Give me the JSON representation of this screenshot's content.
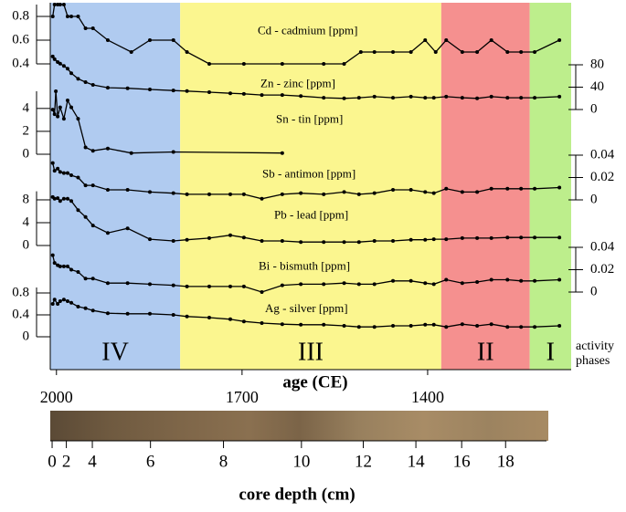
{
  "chart_data": [
    {
      "type": "line",
      "title": "Cd - cadmium [ppm]",
      "color": "#000000",
      "axis_side": "left",
      "x": [
        2006,
        2003,
        1998,
        1994,
        1988,
        1982,
        1976,
        1965,
        1953,
        1941,
        1917,
        1879,
        1849,
        1811,
        1789,
        1753,
        1697,
        1635,
        1568,
        1535,
        1508,
        1486,
        1456,
        1427,
        1404,
        1387,
        1370,
        1344,
        1320,
        1297,
        1271,
        1249,
        1227,
        1187
      ],
      "values": [
        0.8,
        0.9,
        0.9,
        0.9,
        0.9,
        0.8,
        0.8,
        0.8,
        0.7,
        0.7,
        0.6,
        0.5,
        0.6,
        0.6,
        0.5,
        0.4,
        0.4,
        0.4,
        0.4,
        0.4,
        0.5,
        0.5,
        0.5,
        0.5,
        0.6,
        0.5,
        0.6,
        0.5,
        0.5,
        0.6,
        0.5,
        0.5,
        0.5,
        0.6
      ],
      "ylim": [
        0.4,
        0.9
      ],
      "yticks": [
        0.4,
        0.6,
        0.8
      ]
    },
    {
      "type": "line",
      "title": "Zn - zinc [ppm]",
      "color": "#000000",
      "axis_side": "right",
      "x": [
        2006,
        2003,
        1998,
        1994,
        1988,
        1982,
        1976,
        1965,
        1953,
        1941,
        1917,
        1885,
        1849,
        1811,
        1789,
        1753,
        1719,
        1697,
        1668,
        1635,
        1605,
        1568,
        1535,
        1511,
        1486,
        1456,
        1427,
        1404,
        1390,
        1370,
        1344,
        1320,
        1297,
        1271,
        1249,
        1227,
        1187
      ],
      "values": [
        95,
        90,
        85,
        82,
        78,
        73,
        65,
        55,
        49,
        44,
        39,
        38,
        36,
        34,
        33,
        31,
        29,
        28,
        26,
        26,
        24,
        21,
        20,
        21,
        23,
        21,
        23,
        21,
        21,
        23,
        21,
        20,
        23,
        21,
        21,
        21,
        23
      ],
      "ylim": [
        0,
        80
      ],
      "yticks": [
        0,
        40,
        80
      ]
    },
    {
      "type": "line",
      "title": "Sn - tin [ppm]",
      "color": "#000000",
      "axis_side": "left",
      "x": [
        2006,
        2003,
        2001,
        1998,
        1994,
        1988,
        1982,
        1976,
        1965,
        1953,
        1941,
        1917,
        1879,
        1811,
        1635
      ],
      "values": [
        3.9,
        3.5,
        5.5,
        3.3,
        4.1,
        3.1,
        4.7,
        4.1,
        3.1,
        0.6,
        0.3,
        0.5,
        0.1,
        0.2,
        0.1
      ],
      "ylim": [
        0,
        5.5
      ],
      "yticks": [
        0,
        2,
        4
      ]
    },
    {
      "type": "line",
      "title": "Sb - antimon [ppm]",
      "color": "#000000",
      "axis_side": "right",
      "x": [
        2006,
        2003,
        1998,
        1994,
        1988,
        1982,
        1976,
        1965,
        1953,
        1941,
        1917,
        1885,
        1849,
        1811,
        1789,
        1753,
        1719,
        1697,
        1668,
        1635,
        1605,
        1568,
        1535,
        1511,
        1486,
        1456,
        1427,
        1404,
        1390,
        1370,
        1344,
        1320,
        1297,
        1271,
        1249,
        1227,
        1187
      ],
      "values": [
        0.033,
        0.026,
        0.028,
        0.025,
        0.024,
        0.024,
        0.022,
        0.02,
        0.013,
        0.013,
        0.009,
        0.009,
        0.007,
        0.006,
        0.005,
        0.005,
        0.005,
        0.005,
        0.001,
        0.005,
        0.006,
        0.005,
        0.007,
        0.005,
        0.006,
        0.009,
        0.009,
        0.007,
        0.006,
        0.01,
        0.007,
        0.007,
        0.01,
        0.01,
        0.01,
        0.01,
        0.011
      ],
      "ylim": [
        0,
        0.04
      ],
      "yticks": [
        0,
        0.02,
        0.04
      ]
    },
    {
      "type": "line",
      "title": "Pb - lead [ppm]",
      "color": "#000000",
      "axis_side": "left",
      "x": [
        2006,
        2003,
        1998,
        1994,
        1988,
        1982,
        1976,
        1965,
        1953,
        1941,
        1917,
        1885,
        1849,
        1811,
        1789,
        1753,
        1719,
        1697,
        1668,
        1635,
        1605,
        1568,
        1535,
        1511,
        1486,
        1456,
        1427,
        1404,
        1390,
        1370,
        1344,
        1320,
        1297,
        1271,
        1249,
        1227,
        1187
      ],
      "values": [
        8.5,
        8.2,
        8.3,
        7.8,
        8.2,
        8.2,
        7.8,
        6.2,
        5.0,
        3.5,
        2.2,
        3.0,
        1.1,
        0.8,
        1.0,
        1.3,
        1.8,
        1.4,
        0.8,
        0.8,
        0.6,
        0.6,
        0.6,
        0.6,
        0.8,
        0.8,
        1.0,
        1.0,
        1.1,
        1.1,
        1.3,
        1.3,
        1.3,
        1.4,
        1.4,
        1.4,
        1.4
      ],
      "ylim": [
        0,
        9.5
      ],
      "yticks": [
        0,
        4,
        8
      ]
    },
    {
      "type": "line",
      "title": "Bi - bismuth [ppm]",
      "color": "#000000",
      "axis_side": "right",
      "x": [
        2006,
        2003,
        1998,
        1994,
        1988,
        1982,
        1976,
        1965,
        1953,
        1941,
        1917,
        1885,
        1849,
        1811,
        1789,
        1753,
        1719,
        1697,
        1668,
        1635,
        1605,
        1568,
        1535,
        1511,
        1486,
        1456,
        1427,
        1404,
        1390,
        1370,
        1344,
        1320,
        1297,
        1271,
        1249,
        1227,
        1187
      ],
      "values": [
        0.033,
        0.026,
        0.024,
        0.023,
        0.023,
        0.023,
        0.02,
        0.018,
        0.012,
        0.012,
        0.008,
        0.008,
        0.007,
        0.006,
        0.005,
        0.005,
        0.005,
        0.005,
        0.0,
        0.006,
        0.007,
        0.007,
        0.008,
        0.007,
        0.007,
        0.01,
        0.01,
        0.008,
        0.007,
        0.011,
        0.008,
        0.009,
        0.011,
        0.011,
        0.01,
        0.01,
        0.011
      ],
      "ylim": [
        0,
        0.04
      ],
      "yticks": [
        0,
        0.02,
        0.04
      ]
    },
    {
      "type": "line",
      "title": "Ag - silver [ppm]",
      "color": "#000000",
      "axis_side": "left",
      "x": [
        2006,
        2003,
        1998,
        1994,
        1988,
        1982,
        1976,
        1965,
        1953,
        1941,
        1917,
        1885,
        1849,
        1811,
        1789,
        1753,
        1719,
        1697,
        1668,
        1635,
        1605,
        1568,
        1535,
        1511,
        1486,
        1456,
        1427,
        1404,
        1390,
        1370,
        1344,
        1320,
        1297,
        1271,
        1249,
        1227,
        1187
      ],
      "values": [
        0.6,
        0.68,
        0.6,
        0.65,
        0.68,
        0.65,
        0.62,
        0.55,
        0.52,
        0.48,
        0.43,
        0.42,
        0.42,
        0.4,
        0.37,
        0.35,
        0.32,
        0.28,
        0.25,
        0.23,
        0.22,
        0.22,
        0.2,
        0.18,
        0.18,
        0.2,
        0.2,
        0.22,
        0.22,
        0.18,
        0.23,
        0.2,
        0.23,
        0.18,
        0.18,
        0.18,
        0.2
      ],
      "ylim": [
        0,
        0.9
      ],
      "yticks": [
        0,
        0.4,
        0.8
      ]
    }
  ],
  "age_axis": {
    "label": "age (CE)",
    "xlim": [
      2010,
      1168
    ],
    "xticks": [
      2000,
      1700,
      1400
    ]
  },
  "phases": {
    "label": [
      "activity",
      "phases"
    ],
    "items": [
      {
        "name": "IV",
        "range": [
          2010,
          1800
        ],
        "color": "#b0cbf0"
      },
      {
        "name": "III",
        "range": [
          1800,
          1378
        ],
        "color": "#fbf68f"
      },
      {
        "name": "II",
        "range": [
          1378,
          1235
        ],
        "color": "#f5908f"
      },
      {
        "name": "I",
        "range": [
          1235,
          1168
        ],
        "color": "#bdee8c"
      }
    ]
  },
  "depth_axis": {
    "label": "core depth (cm)",
    "ticks": [
      0,
      2,
      4,
      6,
      8,
      10,
      12,
      14,
      16,
      18
    ],
    "tick_ages": [
      2007,
      1984,
      1942,
      1848,
      1730,
      1604,
      1504,
      1419,
      1345,
      1274
    ]
  }
}
